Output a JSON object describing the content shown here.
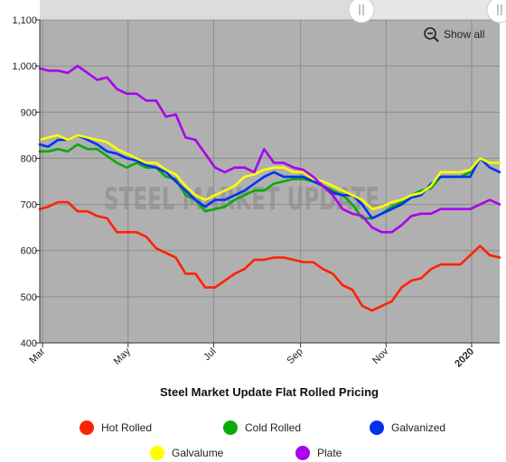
{
  "chart_data": {
    "type": "line",
    "title": "Steel Market Update Flat Rolled Pricing",
    "watermark": "STEEL MARKET UPDATE",
    "show_all_label": "Show all",
    "ylim": [
      400,
      1100
    ],
    "yticks": [
      400,
      500,
      600,
      700,
      800,
      900,
      1000,
      1100
    ],
    "ytick_labels": [
      "400",
      "500",
      "600",
      "700",
      "800",
      "900",
      "1,000",
      "1,100"
    ],
    "xlim": [
      "2019-02-27",
      "2020-01-21"
    ],
    "xticks": [
      {
        "date": "2019-03-01",
        "label": "Mar",
        "bold": false
      },
      {
        "date": "2019-05-01",
        "label": "May",
        "bold": false
      },
      {
        "date": "2019-07-01",
        "label": "Jul",
        "bold": false
      },
      {
        "date": "2019-09-01",
        "label": "Sep",
        "bold": false
      },
      {
        "date": "2019-11-01",
        "label": "Nov",
        "bold": false
      },
      {
        "date": "2020-01-01",
        "label": "2020",
        "bold": true
      }
    ],
    "grid": true,
    "legend_position": "bottom",
    "x": [
      "2019-02-27",
      "2019-03-05",
      "2019-03-12",
      "2019-03-19",
      "2019-03-26",
      "2019-04-02",
      "2019-04-09",
      "2019-04-16",
      "2019-04-23",
      "2019-04-30",
      "2019-05-07",
      "2019-05-14",
      "2019-05-21",
      "2019-05-28",
      "2019-06-04",
      "2019-06-11",
      "2019-06-18",
      "2019-06-25",
      "2019-07-02",
      "2019-07-09",
      "2019-07-16",
      "2019-07-23",
      "2019-07-30",
      "2019-08-06",
      "2019-08-13",
      "2019-08-20",
      "2019-08-27",
      "2019-09-03",
      "2019-09-10",
      "2019-09-17",
      "2019-09-24",
      "2019-10-01",
      "2019-10-08",
      "2019-10-15",
      "2019-10-22",
      "2019-10-29",
      "2019-11-05",
      "2019-11-12",
      "2019-11-19",
      "2019-11-26",
      "2019-12-03",
      "2019-12-10",
      "2019-12-17",
      "2019-12-24",
      "2019-12-31",
      "2020-01-07",
      "2020-01-14",
      "2020-01-21"
    ],
    "series": [
      {
        "name": "Hot Rolled",
        "color": "#ff2200",
        "values": [
          690,
          695,
          705,
          705,
          685,
          685,
          675,
          670,
          640,
          640,
          640,
          630,
          605,
          595,
          585,
          550,
          550,
          520,
          520,
          535,
          550,
          560,
          580,
          580,
          585,
          585,
          580,
          575,
          575,
          560,
          550,
          525,
          515,
          480,
          470,
          480,
          490,
          520,
          535,
          540,
          560,
          570,
          570,
          570,
          590,
          610,
          590,
          585
        ]
      },
      {
        "name": "Cold Rolled",
        "color": "#0aaa0a",
        "values": [
          815,
          815,
          820,
          815,
          830,
          820,
          820,
          805,
          790,
          780,
          790,
          780,
          780,
          760,
          755,
          720,
          710,
          685,
          690,
          695,
          710,
          720,
          730,
          730,
          745,
          750,
          755,
          755,
          750,
          740,
          730,
          720,
          700,
          670,
          670,
          680,
          695,
          705,
          720,
          730,
          735,
          760,
          760,
          760,
          770,
          800,
          790,
          790
        ]
      },
      {
        "name": "Galvanized",
        "color": "#0033ee",
        "values": [
          830,
          825,
          840,
          840,
          850,
          840,
          830,
          815,
          810,
          800,
          795,
          785,
          780,
          770,
          750,
          730,
          710,
          695,
          710,
          710,
          720,
          730,
          745,
          760,
          770,
          760,
          760,
          760,
          750,
          740,
          725,
          720,
          720,
          700,
          670,
          680,
          690,
          700,
          715,
          720,
          745,
          760,
          760,
          760,
          760,
          800,
          780,
          770
        ]
      },
      {
        "name": "Galvalume",
        "color": "#ffff00",
        "values": [
          840,
          845,
          850,
          840,
          850,
          845,
          840,
          835,
          820,
          810,
          800,
          790,
          790,
          775,
          765,
          740,
          720,
          710,
          720,
          730,
          740,
          760,
          765,
          775,
          780,
          780,
          770,
          770,
          755,
          750,
          740,
          730,
          720,
          710,
          690,
          695,
          705,
          710,
          720,
          725,
          740,
          770,
          770,
          770,
          775,
          800,
          790,
          790
        ]
      },
      {
        "name": "Plate",
        "color": "#aa00ee",
        "values": [
          995,
          990,
          990,
          985,
          1000,
          985,
          970,
          975,
          950,
          940,
          940,
          925,
          925,
          890,
          895,
          845,
          840,
          810,
          780,
          770,
          780,
          780,
          770,
          820,
          790,
          790,
          780,
          775,
          760,
          740,
          720,
          690,
          680,
          675,
          650,
          640,
          640,
          655,
          675,
          680,
          680,
          690,
          690,
          690,
          690,
          700,
          710,
          700
        ]
      }
    ]
  }
}
